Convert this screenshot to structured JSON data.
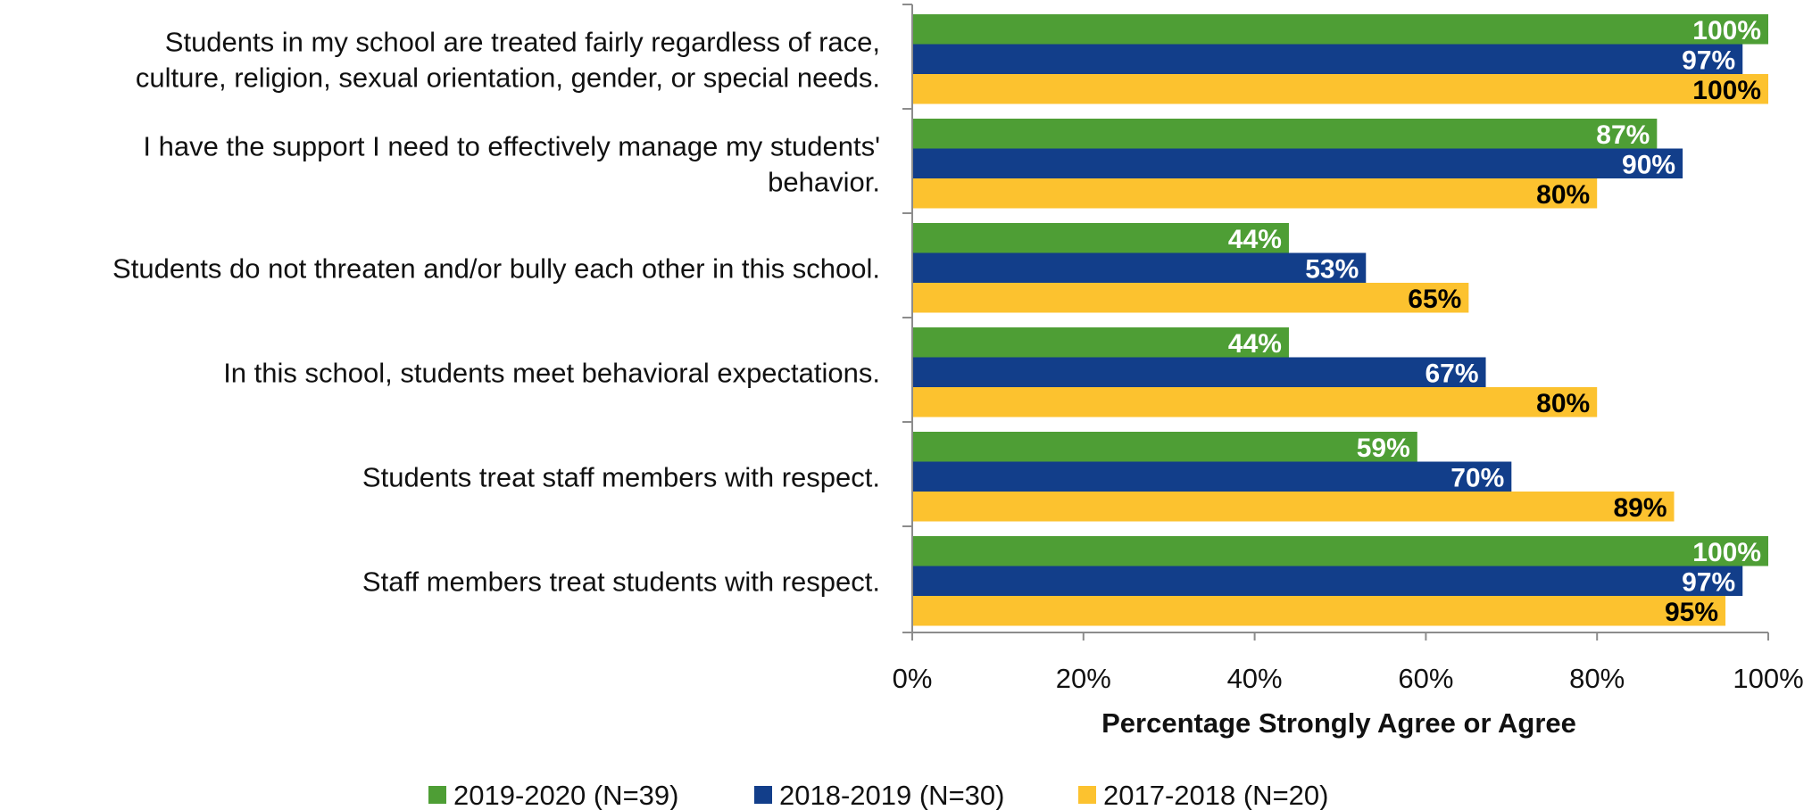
{
  "chart_data": {
    "type": "bar",
    "orientation": "horizontal",
    "categories": [
      "Students in my school are treated fairly regardless of race, culture, religion, sexual orientation, gender, or special needs.",
      "I have the support I need to effectively manage my students' behavior.",
      "Students do not threaten and/or bully each other in this school.",
      "In this school, students meet behavioral expectations.",
      "Students treat staff members with respect.",
      "Staff members treat students with respect."
    ],
    "category_lines": [
      [
        "Students in my school are treated fairly regardless of race,",
        "culture, religion, sexual orientation, gender, or special needs."
      ],
      [
        "I have the support I need to effectively manage my students'",
        "behavior."
      ],
      [
        "Students do not threaten and/or bully each other in this school."
      ],
      [
        "In this school, students meet behavioral expectations."
      ],
      [
        "Students treat staff members with respect."
      ],
      [
        "Staff members treat students with respect."
      ]
    ],
    "series": [
      {
        "name": "2019-2020 (N=39)",
        "color": "#4e9e35",
        "label_color": "#ffffff",
        "values": [
          100,
          87,
          44,
          44,
          59,
          100
        ]
      },
      {
        "name": "2018-2019 (N=30)",
        "color": "#123e8a",
        "label_color": "#ffffff",
        "values": [
          97,
          90,
          53,
          67,
          70,
          97
        ]
      },
      {
        "name": "2017-2018 (N=20)",
        "color": "#fcc22f",
        "label_color": "#000000",
        "values": [
          100,
          80,
          65,
          80,
          89,
          95
        ]
      }
    ],
    "value_suffix": "%",
    "xlim": [
      0,
      100
    ],
    "xticks": [
      "0%",
      "20%",
      "40%",
      "60%",
      "80%",
      "100%"
    ],
    "xlabel": "Percentage Strongly Agree or Agree",
    "ylabel": "",
    "grid": false,
    "legend_position": "bottom"
  }
}
